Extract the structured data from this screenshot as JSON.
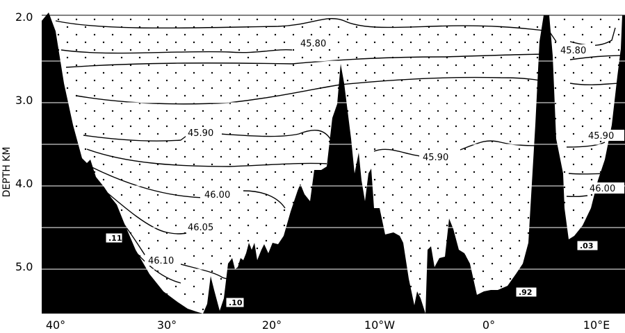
{
  "figure": {
    "y_axis_title": "DEPTH KM",
    "y_ticks": [
      "2.0",
      "3.0",
      "4.0",
      "5.0"
    ],
    "x_ticks": [
      "40°",
      "30°",
      "20°",
      "10°W",
      "0°",
      "10°E"
    ],
    "contour_labels": [
      "45.80",
      "45.80",
      "45.90",
      "45.90",
      "45.90",
      "46.00",
      "46.00",
      "46.05",
      "46.10"
    ],
    "boxed_labels": [
      ".11",
      ".10",
      ".92",
      ".03"
    ],
    "colors": {
      "seafloor": "#000000",
      "water": "#ffffff",
      "contour": "#000000"
    }
  }
}
